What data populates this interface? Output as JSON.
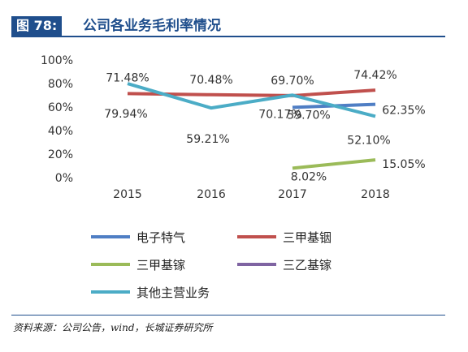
{
  "header": {
    "figure_number": "图 78:",
    "title": "公司各业务毛利率情况"
  },
  "source_note": "资料来源：公司公告，wind，长城证券研究所",
  "chart_data": {
    "type": "line",
    "x": [
      "2015",
      "2016",
      "2017",
      "2018"
    ],
    "ylim": [
      0,
      100
    ],
    "yticks": [
      0,
      20,
      40,
      60,
      80,
      100
    ],
    "ytick_labels": [
      "0%",
      "20%",
      "40%",
      "60%",
      "80%",
      "100%"
    ],
    "grid": false,
    "legend_position": "bottom",
    "series": [
      {
        "name": "电子特气",
        "color": "#4f7ec4",
        "values": [
          null,
          null,
          59.7,
          62.35
        ],
        "labels": [
          null,
          null,
          "59.70%",
          "62.35%"
        ]
      },
      {
        "name": "三甲基铟",
        "color": "#c0504d",
        "values": [
          71.48,
          70.48,
          69.7,
          74.42
        ],
        "labels": [
          "71.48%",
          "70.48%",
          "69.70%",
          "74.42%"
        ]
      },
      {
        "name": "三甲基镓",
        "color": "#9bbb59",
        "values": [
          null,
          null,
          8.02,
          15.05
        ],
        "labels": [
          null,
          null,
          "8.02%",
          "15.05%"
        ]
      },
      {
        "name": "三乙基镓",
        "color": "#7f64a2",
        "values": [
          null,
          null,
          null,
          null
        ],
        "labels": [
          null,
          null,
          null,
          null
        ]
      },
      {
        "name": "其他主营业务",
        "color": "#4bacc6",
        "values": [
          79.94,
          59.21,
          70.17,
          52.1
        ],
        "labels": [
          "79.94%",
          "59.21%",
          "70.17%",
          "52.10%"
        ]
      }
    ]
  }
}
